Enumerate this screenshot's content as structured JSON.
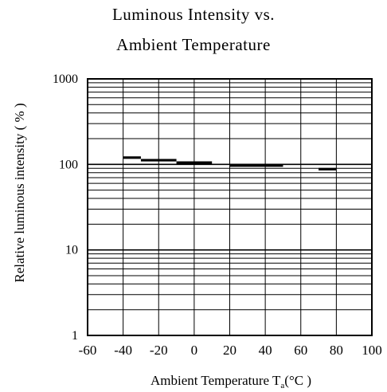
{
  "chart_data": {
    "type": "line",
    "title_line1": "Luminous Intensity vs.",
    "title_line2": "Ambient Temperature",
    "xlabel": "Ambient Temperature T",
    "xlabel_sub": "a",
    "xlabel_unit": "(°C )",
    "ylabel": "Relative luminous intensity  ( % )",
    "x_ticks": [
      -60,
      -40,
      -20,
      0,
      20,
      40,
      60,
      80,
      100
    ],
    "x_tick_labels": [
      "-60",
      "-40",
      "-20",
      "0",
      "20",
      "40",
      "60",
      "80",
      "100"
    ],
    "y_ticks": [
      1,
      10,
      100,
      1000
    ],
    "y_tick_labels": [
      "1",
      "10",
      "100",
      "1000"
    ],
    "xlim": [
      -60,
      100
    ],
    "ylim": [
      1,
      1000
    ],
    "y_scale": "log",
    "grid": true,
    "series": [
      {
        "segments": [
          {
            "x": [
              -40,
              -30
            ],
            "y": [
              120,
              120
            ]
          },
          {
            "x": [
              -30,
              -10
            ],
            "y": [
              112,
              112
            ]
          },
          {
            "x": [
              -10,
              10
            ],
            "y": [
              105,
              105
            ]
          },
          {
            "x": [
              20,
              50
            ],
            "y": [
              97,
              97
            ]
          },
          {
            "x": [
              70,
              80
            ],
            "y": [
              88,
              88
            ]
          }
        ]
      }
    ]
  }
}
